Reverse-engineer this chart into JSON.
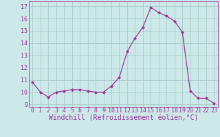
{
  "x": [
    0,
    1,
    2,
    3,
    4,
    5,
    6,
    7,
    8,
    9,
    10,
    11,
    12,
    13,
    14,
    15,
    16,
    17,
    18,
    19,
    20,
    21,
    22,
    23
  ],
  "y": [
    10.8,
    10.0,
    9.6,
    10.0,
    10.1,
    10.2,
    10.2,
    10.1,
    10.0,
    10.0,
    10.5,
    11.2,
    13.3,
    14.4,
    15.3,
    16.9,
    16.5,
    16.2,
    15.8,
    14.9,
    10.1,
    9.5,
    9.5,
    9.1
  ],
  "line_color": "#993399",
  "marker": "D",
  "marker_size": 2.0,
  "bg_color": "#cce8e8",
  "grid_color": "#aacccc",
  "xlabel": "Windchill (Refroidissement éolien,°C)",
  "xlabel_color": "#993399",
  "tick_color": "#993399",
  "spine_color": "#993399",
  "xlim": [
    -0.5,
    23.5
  ],
  "ylim": [
    8.8,
    17.4
  ],
  "yticks": [
    9,
    10,
    11,
    12,
    13,
    14,
    15,
    16,
    17
  ],
  "xticks": [
    0,
    1,
    2,
    3,
    4,
    5,
    6,
    7,
    8,
    9,
    10,
    11,
    12,
    13,
    14,
    15,
    16,
    17,
    18,
    19,
    20,
    21,
    22,
    23
  ],
  "tick_fontsize": 6.0,
  "xlabel_fontsize": 7.0,
  "linewidth": 0.9
}
